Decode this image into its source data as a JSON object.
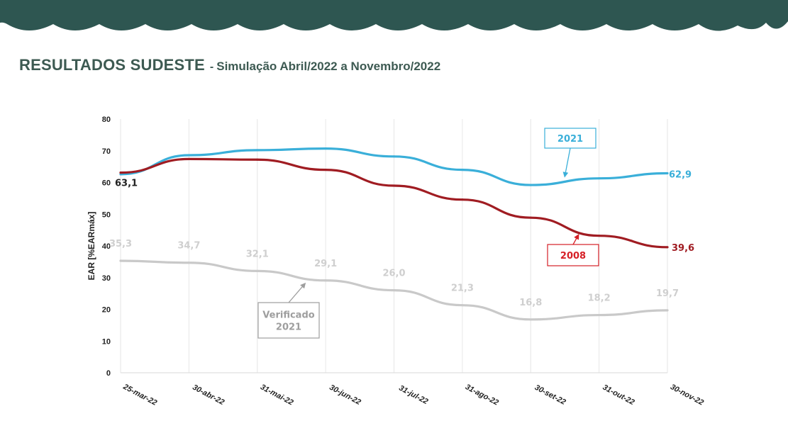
{
  "slide": {
    "title": "RESULTADOS SUDESTE",
    "separator": "-",
    "subtitle": "Simulação Abril/2022 a Novembro/2022"
  },
  "chart_data": {
    "type": "line",
    "ylabel": "EAR [%EARmáx]",
    "xlabel": "",
    "ylim": [
      0,
      80
    ],
    "yticks": [
      0,
      10,
      20,
      30,
      40,
      50,
      60,
      70,
      80
    ],
    "grid": "vertical",
    "categories": [
      "25-mar-22",
      "30-abr-22",
      "31-mai-22",
      "30-jun-22",
      "31-jul-22",
      "31-ago-22",
      "30-set-22",
      "31-out-22",
      "30-nov-22"
    ],
    "series": [
      {
        "name": "2021",
        "color": "#3aafd9",
        "values": [
          62.6,
          68.6,
          70.2,
          70.7,
          68.2,
          64.0,
          59.2,
          61.3,
          62.9
        ],
        "labels": [
          "",
          "",
          "",
          "",
          "",
          "",
          "",
          "",
          "62,9"
        ]
      },
      {
        "name": "2008",
        "color": "#a01c22",
        "values": [
          63.1,
          67.4,
          67.2,
          64.0,
          59.0,
          54.6,
          48.9,
          43.2,
          39.6
        ],
        "labels": [
          "63,1",
          "",
          "",
          "",
          "",
          "",
          "",
          "",
          "39,6"
        ]
      },
      {
        "name": "Verificado 2021",
        "color": "#c9c9c9",
        "values": [
          35.3,
          34.7,
          32.1,
          29.1,
          26.0,
          21.3,
          16.8,
          18.2,
          19.7
        ],
        "labels": [
          "35,3",
          "34,7",
          "32,1",
          "29,1",
          "26,0",
          "21,3",
          "16,8",
          "18,2",
          "19,7"
        ]
      }
    ],
    "annotations": [
      {
        "text": [
          "2021"
        ],
        "series": "2021",
        "color": "#3aafd9",
        "text_color": "#3aafd9"
      },
      {
        "text": [
          "2008"
        ],
        "series": "2008",
        "color": "#d62027",
        "text_color": "#d62027"
      },
      {
        "text": [
          "Verificado",
          "2021"
        ],
        "series": "Verificado 2021",
        "color": "#9e9e9e",
        "text_color": "#9e9e9e"
      }
    ]
  }
}
